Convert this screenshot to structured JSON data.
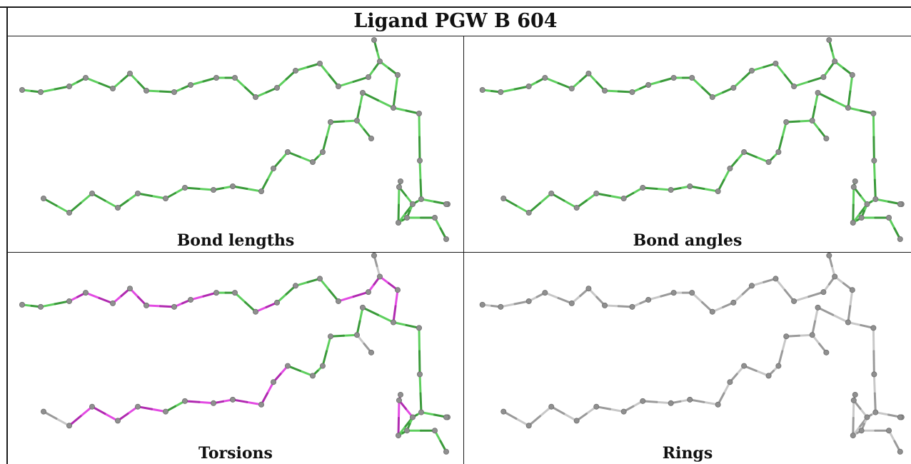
{
  "title": "Ligand PGW B 604",
  "panels": [
    {
      "caption": "Bond lengths",
      "mode": "lengths"
    },
    {
      "caption": "Bond angles",
      "mode": "angles"
    },
    {
      "caption": "Torsions",
      "mode": "torsions"
    },
    {
      "caption": "Rings",
      "mode": "rings"
    }
  ],
  "colors": {
    "bond_ok": "#5ecf5e",
    "bond_ok_dark": "#3a9a3a",
    "bond_outlier": "#e34be3",
    "bond_outlier_dark": "#b02ab0",
    "bond_gray": "#c8c8c8",
    "bond_gray_dark": "#9a9a9a",
    "atom": "#8f8f8f"
  }
}
